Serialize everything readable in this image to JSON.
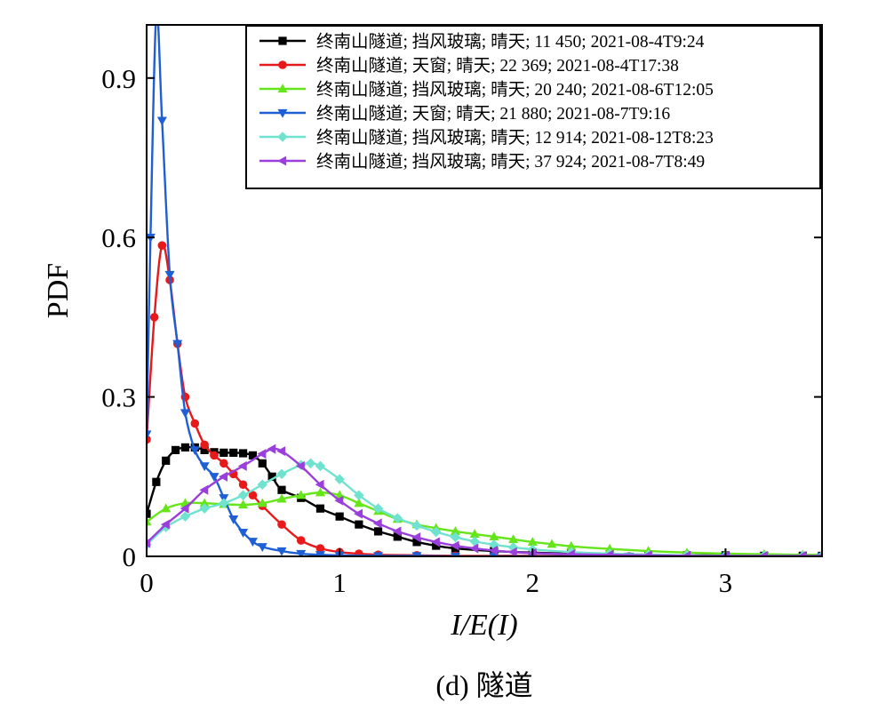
{
  "chart_data": {
    "type": "line",
    "caption": "(d) 隧道",
    "xlabel": "I/E(I)",
    "ylabel": "PDF",
    "xlim": [
      0,
      3.5
    ],
    "ylim": [
      0,
      1.0
    ],
    "xticks": [
      0,
      1,
      2,
      3
    ],
    "yticks": [
      0,
      0.3,
      0.6,
      0.9
    ],
    "xtick_labels": [
      "0",
      "1",
      "2",
      "3"
    ],
    "ytick_labels": [
      "0",
      "0.3",
      "0.6",
      "0.9"
    ],
    "grid": false,
    "legend_position": "top-right",
    "series": [
      {
        "name": "终南山隧道; 挡风玻璃; 晴天; 11 450; 2021-08-4T9:24",
        "color": "#000000",
        "marker": "square",
        "x": [
          0,
          0.05,
          0.1,
          0.15,
          0.2,
          0.25,
          0.3,
          0.35,
          0.4,
          0.45,
          0.5,
          0.55,
          0.6,
          0.65,
          0.7,
          0.8,
          0.9,
          1.0,
          1.1,
          1.2,
          1.3,
          1.4,
          1.5,
          1.6,
          1.8,
          2.0,
          2.2,
          2.4,
          2.6,
          2.8,
          3.0,
          3.2,
          3.4,
          3.5
        ],
        "y": [
          0.08,
          0.14,
          0.18,
          0.2,
          0.205,
          0.205,
          0.2,
          0.196,
          0.195,
          0.195,
          0.194,
          0.19,
          0.175,
          0.15,
          0.125,
          0.11,
          0.09,
          0.075,
          0.06,
          0.047,
          0.037,
          0.027,
          0.02,
          0.015,
          0.01,
          0.007,
          0.005,
          0.004,
          0.003,
          0.002,
          0.002,
          0.001,
          0.001,
          0.001
        ]
      },
      {
        "name": "终南山隧道; 天窗; 晴天; 22 369; 2021-08-4T17:38",
        "color": "#e8191a",
        "marker": "circle",
        "x": [
          0,
          0.04,
          0.08,
          0.12,
          0.16,
          0.2,
          0.25,
          0.3,
          0.35,
          0.4,
          0.45,
          0.5,
          0.55,
          0.6,
          0.7,
          0.8,
          0.9,
          1.0,
          1.1,
          1.2,
          1.4,
          1.6,
          1.8,
          2.0,
          2.5,
          3.0,
          3.5
        ],
        "y": [
          0.22,
          0.45,
          0.585,
          0.52,
          0.4,
          0.3,
          0.25,
          0.21,
          0.19,
          0.175,
          0.155,
          0.135,
          0.115,
          0.095,
          0.06,
          0.03,
          0.015,
          0.008,
          0.005,
          0.003,
          0.002,
          0.001,
          0.001,
          0.001,
          0,
          0,
          0
        ]
      },
      {
        "name": "终南山隧道; 挡风玻璃; 晴天; 20 240; 2021-08-6T12:05",
        "color": "#66e51a",
        "marker": "triangle-up",
        "x": [
          0,
          0.1,
          0.2,
          0.3,
          0.4,
          0.5,
          0.6,
          0.7,
          0.8,
          0.9,
          1.0,
          1.1,
          1.2,
          1.3,
          1.4,
          1.5,
          1.6,
          1.7,
          1.8,
          1.9,
          2.0,
          2.1,
          2.2,
          2.4,
          2.6,
          2.8,
          3.0,
          3.2,
          3.4,
          3.5
        ],
        "y": [
          0.065,
          0.09,
          0.1,
          0.1,
          0.098,
          0.097,
          0.1,
          0.108,
          0.115,
          0.12,
          0.115,
          0.1,
          0.085,
          0.07,
          0.06,
          0.053,
          0.047,
          0.042,
          0.037,
          0.032,
          0.027,
          0.023,
          0.019,
          0.014,
          0.01,
          0.007,
          0.005,
          0.004,
          0.003,
          0.003
        ]
      },
      {
        "name": "终南山隧道; 天窗; 晴天; 21 880; 2021-08-7T9:16",
        "color": "#1f5fd6",
        "marker": "triangle-down",
        "x": [
          0,
          0.02,
          0.05,
          0.08,
          0.12,
          0.16,
          0.2,
          0.25,
          0.3,
          0.35,
          0.4,
          0.45,
          0.5,
          0.55,
          0.6,
          0.7,
          0.8,
          0.9,
          1.0,
          1.2,
          1.4,
          1.6,
          1.8,
          2.0,
          2.5,
          3.0,
          3.5
        ],
        "y": [
          0.23,
          0.6,
          1.02,
          0.82,
          0.53,
          0.4,
          0.27,
          0.2,
          0.17,
          0.15,
          0.11,
          0.07,
          0.045,
          0.028,
          0.018,
          0.01,
          0.005,
          0.003,
          0.002,
          0.001,
          0.001,
          0,
          0,
          0,
          0,
          0,
          0
        ]
      },
      {
        "name": "终南山隧道; 挡风玻璃; 晴天; 12 914; 2021-08-12T8:23",
        "color": "#6fe3cf",
        "marker": "diamond",
        "x": [
          0,
          0.1,
          0.2,
          0.3,
          0.4,
          0.5,
          0.6,
          0.7,
          0.8,
          0.85,
          0.9,
          1.0,
          1.1,
          1.2,
          1.3,
          1.4,
          1.5,
          1.6,
          1.7,
          1.8,
          1.9,
          2.0,
          2.2,
          2.4,
          2.6,
          2.8,
          3.0,
          3.2,
          3.4,
          3.5
        ],
        "y": [
          0.022,
          0.055,
          0.075,
          0.09,
          0.1,
          0.115,
          0.135,
          0.155,
          0.172,
          0.175,
          0.17,
          0.145,
          0.115,
          0.09,
          0.072,
          0.058,
          0.046,
          0.036,
          0.028,
          0.022,
          0.017,
          0.013,
          0.008,
          0.005,
          0.003,
          0.002,
          0.001,
          0.001,
          0.001,
          0.001
        ]
      },
      {
        "name": "终南山隧道; 挡风玻璃; 晴天; 37 924; 2021-08-7T8:49",
        "color": "#9b3fdc",
        "marker": "triangle-left",
        "x": [
          0,
          0.1,
          0.2,
          0.3,
          0.4,
          0.5,
          0.6,
          0.65,
          0.7,
          0.8,
          0.9,
          1.0,
          1.1,
          1.2,
          1.3,
          1.4,
          1.5,
          1.6,
          1.7,
          1.8,
          1.9,
          2.0,
          2.2,
          2.4,
          2.6,
          2.8,
          3.0,
          3.2,
          3.4,
          3.5
        ],
        "y": [
          0.025,
          0.06,
          0.09,
          0.125,
          0.15,
          0.17,
          0.193,
          0.202,
          0.198,
          0.17,
          0.135,
          0.105,
          0.08,
          0.062,
          0.047,
          0.036,
          0.027,
          0.02,
          0.015,
          0.011,
          0.008,
          0.006,
          0.004,
          0.003,
          0.002,
          0.001,
          0.001,
          0.001,
          0.001,
          0.001
        ]
      }
    ]
  }
}
